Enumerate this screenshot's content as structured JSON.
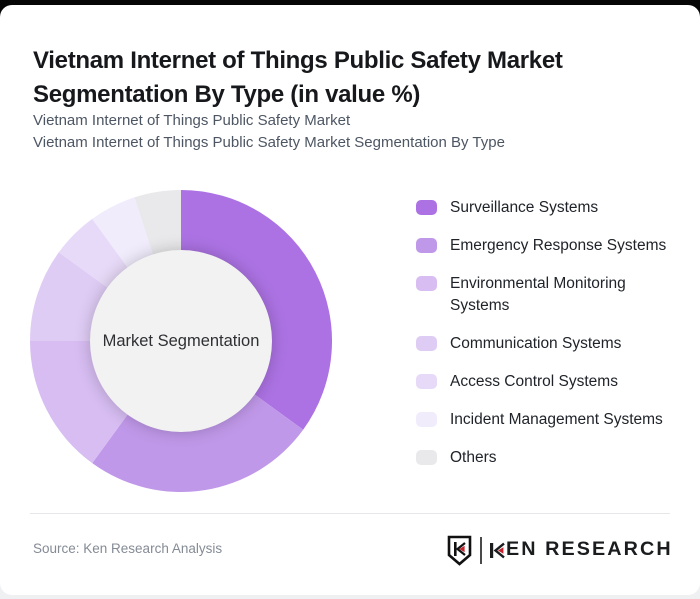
{
  "page": {
    "title": "Vietnam Internet of Things Public Safety Market Segmentation By Type (in value %)",
    "subtitle_line1": "Vietnam Internet of Things Public Safety Market",
    "subtitle_line2": "Vietnam Internet of Things Public Safety Market Segmentation By Type",
    "card_bg": "#ffffff",
    "page_top_bg": "#060606",
    "page_bottom_bg": "#eff0f2"
  },
  "chart_data": {
    "type": "pie",
    "donut": true,
    "title": "Vietnam Internet of Things Public Safety Market Segmentation By Type (in value %)",
    "center_label": "Market Segmentation",
    "unit": "percent",
    "start_angle_deg": 0,
    "direction": "clockwise",
    "legend_position": "right",
    "inner_circle_color": "#f2f2f2",
    "series": [
      {
        "name": "Surveillance Systems",
        "value": 35,
        "color": "#ac72e3"
      },
      {
        "name": "Emergency Response Systems",
        "value": 25,
        "color": "#c098e9"
      },
      {
        "name": "Environmental Monitoring Systems",
        "value": 15,
        "color": "#d7bdf2"
      },
      {
        "name": "Communication Systems",
        "value": 10,
        "color": "#dfccf5"
      },
      {
        "name": "Access Control Systems",
        "value": 5,
        "color": "#e7daf8"
      },
      {
        "name": "Incident Management Systems",
        "value": 5,
        "color": "#f1ecfc"
      },
      {
        "name": "Others",
        "value": 5,
        "color": "#e9e9eb"
      }
    ]
  },
  "footer": {
    "source": "Source: Ken Research Analysis",
    "logo_text": "KEN RESEARCH",
    "logo_red": "#c5222b",
    "logo_black": "#1a1c1e"
  }
}
